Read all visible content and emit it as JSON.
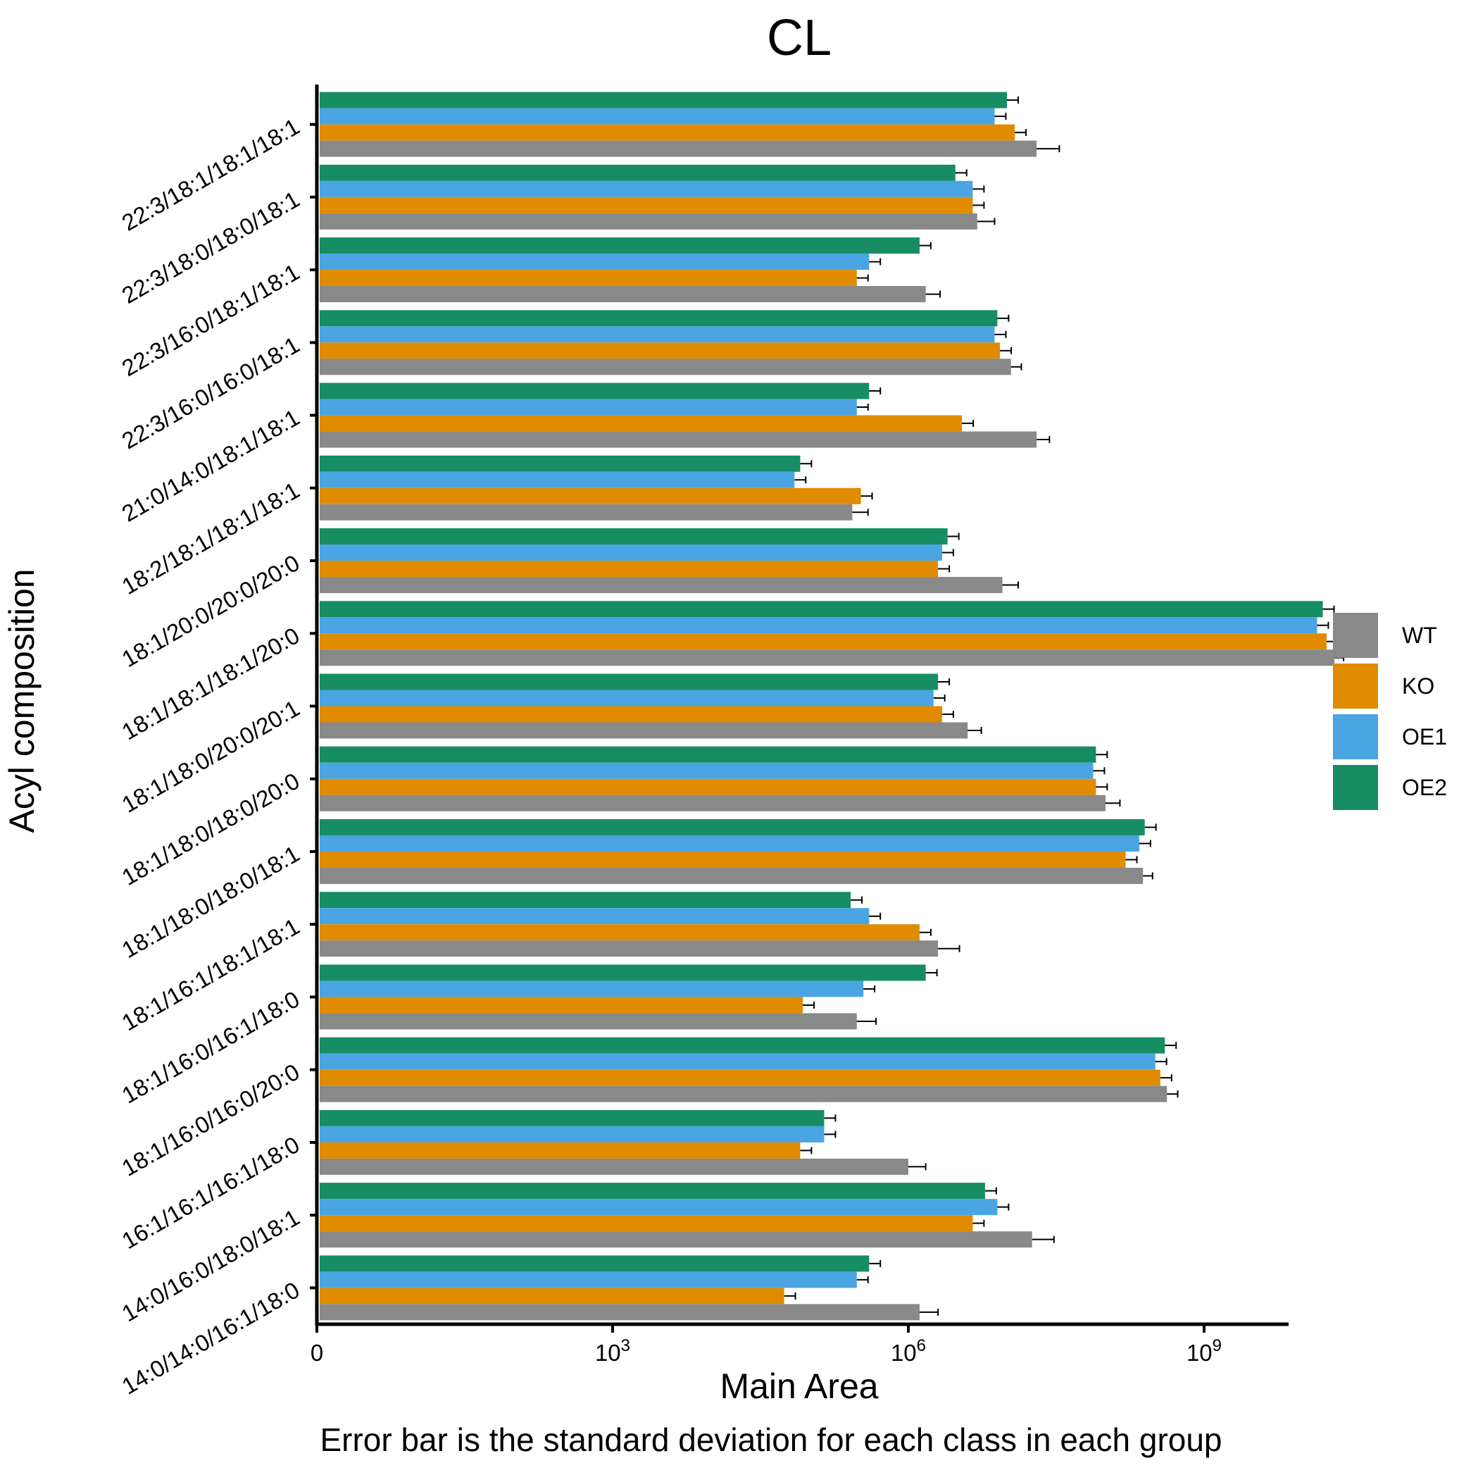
{
  "chart_data": {
    "type": "bar",
    "orientation": "horizontal",
    "title": "CL",
    "xlabel": "Main Area",
    "ylabel": "Acyl composition",
    "caption": "Error bar is the standard deviation for each class in each group",
    "x_scale": "log10",
    "xlim": [
      1,
      30000000000.0
    ],
    "x_ticks": [
      {
        "value": 1,
        "label": "0",
        "base": "0",
        "exp": ""
      },
      {
        "value": 1000,
        "label": "10^3",
        "base": "10",
        "exp": "3"
      },
      {
        "value": 1000000,
        "label": "10^6",
        "base": "10",
        "exp": "6"
      },
      {
        "value": 1000000000,
        "label": "10^9",
        "base": "10",
        "exp": "9"
      }
    ],
    "grid": false,
    "legend_position": "right",
    "categories": [
      "14:0/14:0/16:1/18:0",
      "14:0/16:0/18:0/18:1",
      "16:1/16:1/16:1/18:0",
      "18:1/16:0/16:0/20:0",
      "18:1/16:0/16:1/18:0",
      "18:1/16:1/18:1/18:1",
      "18:1/18:0/18:0/18:1",
      "18:1/18:0/18:0/20:0",
      "18:1/18:0/20:0/20:1",
      "18:1/18:1/18:1/20:0",
      "18:1/20:0/20:0/20:0",
      "18:2/18:1/18:1/18:1",
      "21:0/14:0/18:1/18:1",
      "22:3/16:0/16:0/18:1",
      "22:3/16:0/18:1/18:1",
      "22:3/18:0/18:0/18:1",
      "22:3/18:1/18:1/18:1"
    ],
    "series": [
      {
        "name": "WT",
        "color": "#898989",
        "values": [
          1300000.0,
          18000000.0,
          1000000.0,
          420000000.0,
          300000.0,
          2000000.0,
          240000000.0,
          100000000.0,
          4000000.0,
          21000000000.0,
          9000000.0,
          270000.0,
          20000000.0,
          11000000.0,
          1500000.0,
          5000000.0,
          20000000.0
        ],
        "errors": [
          700000.0,
          12000000.0,
          500000.0,
          120000000.0,
          170000.0,
          1300000.0,
          60000000.0,
          40000000.0,
          1500000.0,
          5000000000.0,
          4000000.0,
          120000.0,
          7000000.0,
          3000000.0,
          600000.0,
          2500000.0,
          14000000.0
        ]
      },
      {
        "name": "KO",
        "color": "#e08b00",
        "values": [
          55000.0,
          4500000.0,
          80000.0,
          360000000.0,
          85000.0,
          1300000.0,
          160000000.0,
          80000000.0,
          2200000.0,
          17500000000.0,
          2000000.0,
          330000.0,
          3500000.0,
          8500000.0,
          300000.0,
          4500000.0,
          12000000.0
        ]
      },
      {
        "name": "OE1",
        "color": "#4aa5e2",
        "values": [
          300000.0,
          8000000.0,
          140000.0,
          320000000.0,
          350000.0,
          400000.0,
          220000000.0,
          75000000.0,
          1800000.0,
          14000000000.0,
          2200000.0,
          70000.0,
          300000.0,
          7500000.0,
          400000.0,
          4500000.0,
          7500000.0
        ]
      },
      {
        "name": "OE2",
        "color": "#168d62",
        "values": [
          400000.0,
          6000000.0,
          140000.0,
          400000000.0,
          1500000.0,
          260000.0,
          250000000.0,
          80000000.0,
          2000000.0,
          16000000000.0,
          2500000.0,
          80000.0,
          400000.0,
          8000000.0,
          1300000.0,
          3000000.0,
          10000000.0
        ]
      }
    ]
  }
}
